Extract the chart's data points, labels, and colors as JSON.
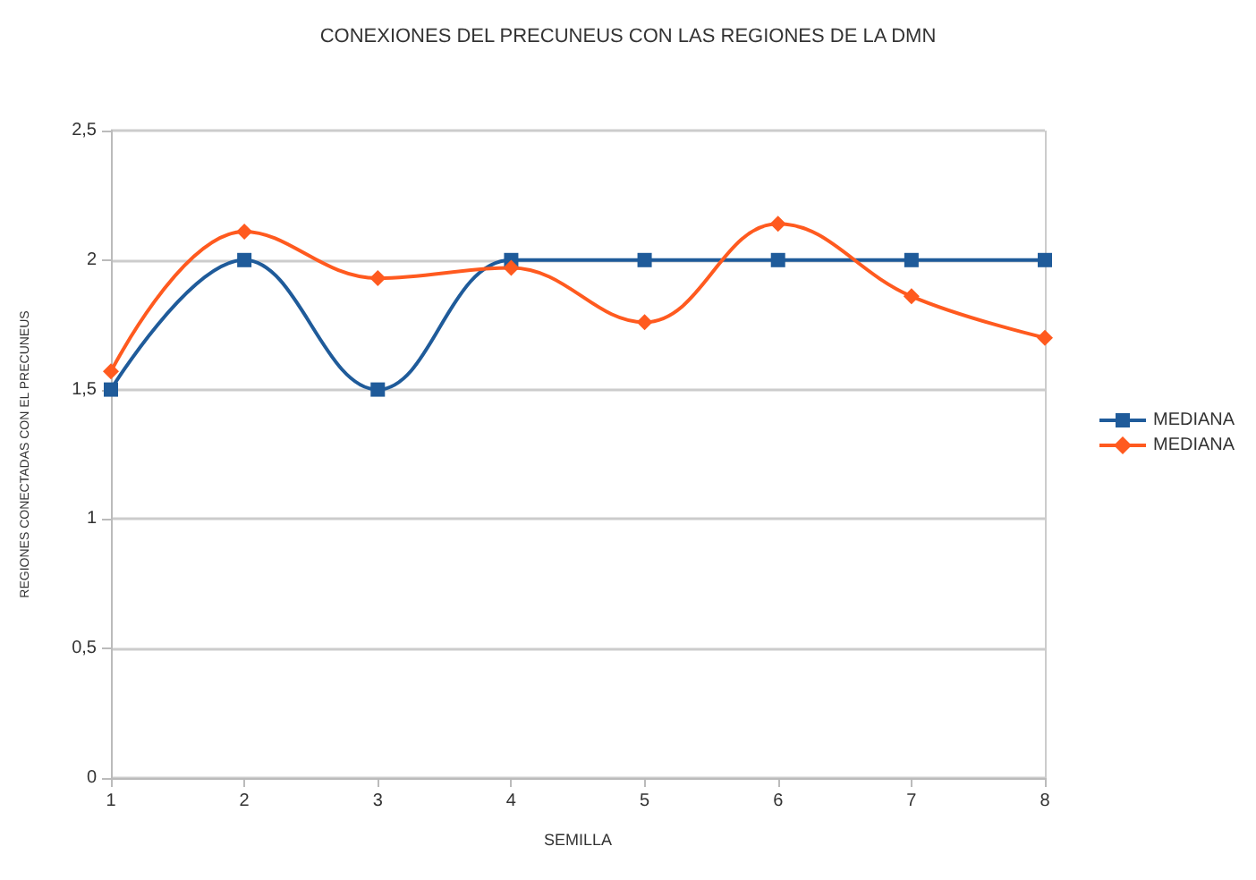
{
  "chart_data": {
    "type": "line",
    "title": "CONEXIONES DEL PRECUNEUS CON LAS REGIONES DE LA DMN",
    "xlabel": "SEMILLA",
    "ylabel": "REGIONES CONECTADAS CON EL PRECUNEUS",
    "categories": [
      "1",
      "2",
      "3",
      "4",
      "5",
      "6",
      "7",
      "8"
    ],
    "series": [
      {
        "name": "MEDIANA",
        "color": "#1f5b9a",
        "marker": "square",
        "values": [
          1.5,
          2,
          1.5,
          2,
          2,
          2,
          2,
          2
        ]
      },
      {
        "name": "MEDIANA",
        "color": "#ff5a1f",
        "marker": "diamond",
        "values": [
          1.57,
          2.11,
          1.93,
          1.97,
          1.76,
          2.14,
          1.86,
          1.7
        ]
      }
    ],
    "ylim": [
      0,
      2.5
    ],
    "yticks": [
      0,
      {
        "value": 0.5,
        "label": "0,5"
      },
      1,
      {
        "value": 1.5,
        "label": "1,5"
      },
      2,
      {
        "value": 2.5,
        "label": "2,5"
      }
    ],
    "grid": "y",
    "legend": "right"
  }
}
